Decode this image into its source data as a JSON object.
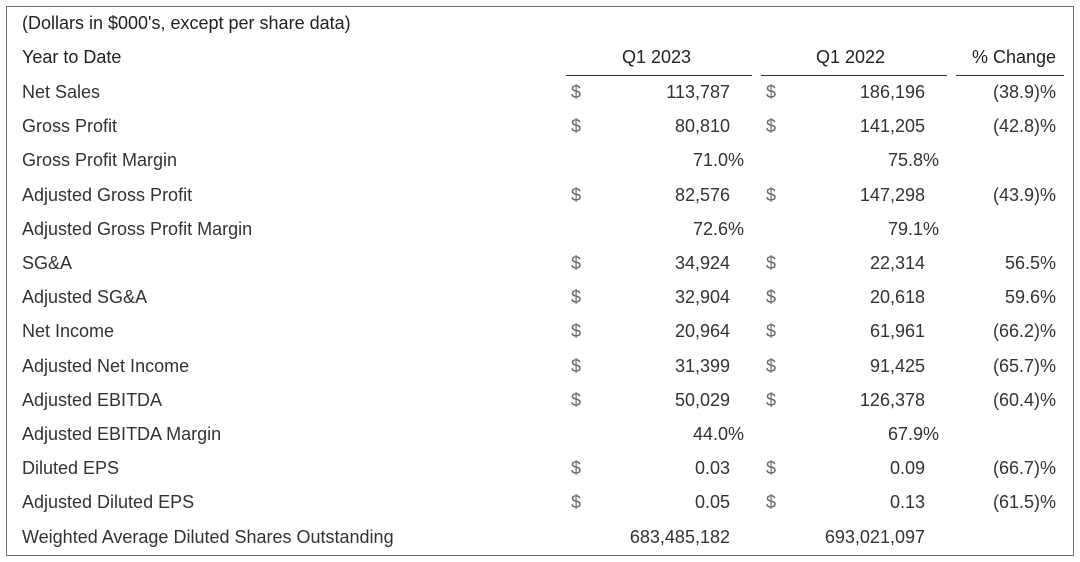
{
  "caption": "(Dollars in $000's, except per share data)",
  "columns": {
    "label": "Year to Date",
    "q1_2023": "Q1 2023",
    "q1_2022": "Q1 2022",
    "change": "% Change"
  },
  "rows": [
    {
      "label": "Net Sales",
      "cur_a": "$",
      "a": "113,787",
      "cur_b": "$",
      "b": "186,196",
      "change": "(38.9)%"
    },
    {
      "label": "Gross Profit",
      "cur_a": "$",
      "a": "80,810",
      "cur_b": "$",
      "b": "141,205",
      "change": "(42.8)%"
    },
    {
      "label": "Gross Profit Margin",
      "cur_a": "",
      "a": "71.0%",
      "cur_b": "",
      "b": "75.8%",
      "change": ""
    },
    {
      "label": "Adjusted Gross Profit",
      "cur_a": "$",
      "a": "82,576",
      "cur_b": "$",
      "b": "147,298",
      "change": "(43.9)%"
    },
    {
      "label": "Adjusted Gross Profit Margin",
      "cur_a": "",
      "a": "72.6%",
      "cur_b": "",
      "b": "79.1%",
      "change": ""
    },
    {
      "label": "SG&A",
      "cur_a": "$",
      "a": "34,924",
      "cur_b": "$",
      "b": "22,314",
      "change": "56.5%"
    },
    {
      "label": "Adjusted SG&A",
      "cur_a": "$",
      "a": "32,904",
      "cur_b": "$",
      "b": "20,618",
      "change": "59.6%"
    },
    {
      "label": "Net Income",
      "cur_a": "$",
      "a": "20,964",
      "cur_b": "$",
      "b": "61,961",
      "change": "(66.2)%"
    },
    {
      "label": "Adjusted Net Income",
      "cur_a": "$",
      "a": "31,399",
      "cur_b": "$",
      "b": "91,425",
      "change": "(65.7)%"
    },
    {
      "label": "Adjusted EBITDA",
      "cur_a": "$",
      "a": "50,029",
      "cur_b": "$",
      "b": "126,378",
      "change": "(60.4)%"
    },
    {
      "label": "Adjusted EBITDA Margin",
      "cur_a": "",
      "a": "44.0%",
      "cur_b": "",
      "b": "67.9%",
      "change": ""
    },
    {
      "label": "Diluted EPS",
      "cur_a": "$",
      "a": "0.03",
      "cur_b": "$",
      "b": "0.09",
      "change": "(66.7)%"
    },
    {
      "label": "Adjusted Diluted EPS",
      "cur_a": "$",
      "a": "0.05",
      "cur_b": "$",
      "b": "0.13",
      "change": "(61.5)%"
    },
    {
      "label": "Weighted Average Diluted Shares Outstanding",
      "cur_a": "",
      "a": "683,485,182",
      "cur_b": "",
      "b": "693,021,097",
      "change": ""
    }
  ]
}
